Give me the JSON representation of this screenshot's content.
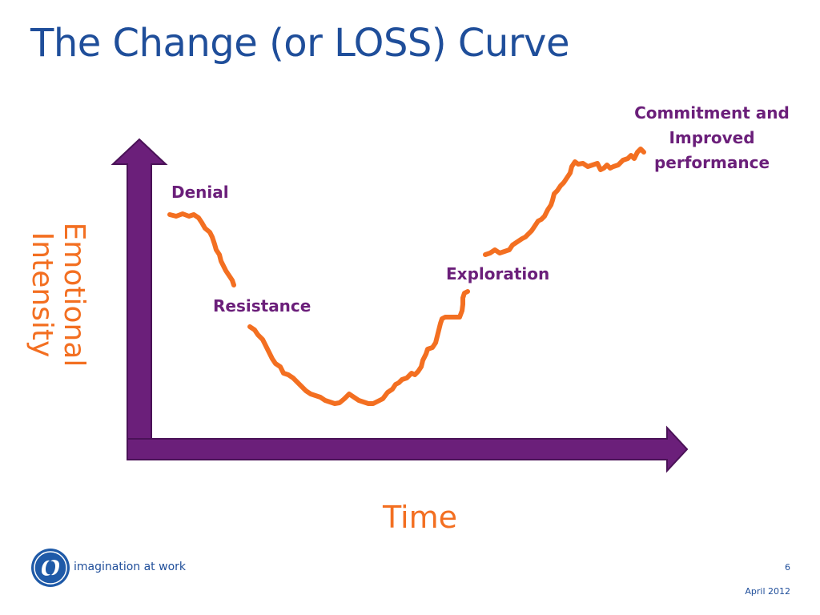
{
  "slide": {
    "title": "The Change (or LOSS) Curve",
    "page_number": "6",
    "date": "April 2012"
  },
  "diagram": {
    "y_axis_label": "Emotional Intensity",
    "x_axis_label": "Time",
    "stages": {
      "denial": "Denial",
      "resistance": "Resistance",
      "exploration": "Exploration",
      "commitment": "Commitment and Improved performance"
    },
    "colors": {
      "axis": "#6b1f7a",
      "curve": "#f36f21",
      "title": "#1f4e9a",
      "stage_label": "#6b1f7a",
      "axis_label": "#f36f21"
    }
  },
  "footer": {
    "logo_icon": "ge-monogram-icon",
    "tagline": "imagination at work"
  }
}
